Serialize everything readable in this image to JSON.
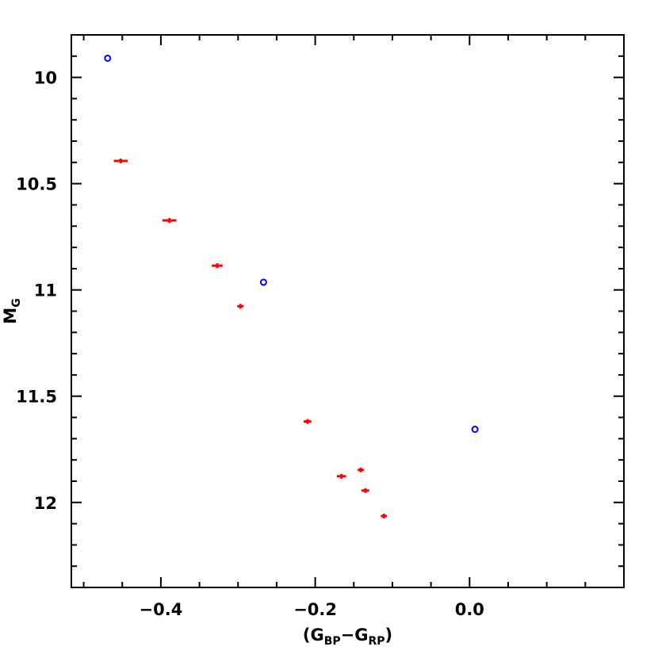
{
  "chart_data": {
    "type": "scatter",
    "xlabel": [
      {
        "text": "(G",
        "sub": false
      },
      {
        "text": "BP",
        "sub": true
      },
      {
        "text": "−G",
        "sub": false
      },
      {
        "text": "RP",
        "sub": true
      },
      {
        "text": ")",
        "sub": false
      }
    ],
    "ylabel": [
      {
        "text": "M",
        "sub": false
      },
      {
        "text": "G",
        "sub": true
      }
    ],
    "xlim": [
      -0.516,
      0.2
    ],
    "ylim": [
      9.8,
      12.4
    ],
    "y_inverted": true,
    "xticks": [
      {
        "value": -0.4,
        "label": "−0.4"
      },
      {
        "value": -0.2,
        "label": "−0.2"
      },
      {
        "value": 0,
        "label": "0.0"
      }
    ],
    "yticks": [
      10,
      10.5,
      11,
      11.5,
      12
    ],
    "xminor_ticks": [
      -0.5,
      -0.45,
      -0.35,
      -0.3,
      -0.25,
      -0.15,
      -0.1,
      -0.05,
      0.05,
      0.1,
      0.15
    ],
    "yminor_ticks": [
      9.9,
      10.1,
      10.2,
      10.3,
      10.4,
      10.6,
      10.7,
      10.8,
      10.9,
      11.1,
      11.2,
      11.3,
      11.4,
      11.6,
      11.7,
      11.8,
      11.9,
      12.1,
      12.2,
      12.3
    ],
    "series": [
      {
        "color": "#ff0000",
        "marker": "errorbar",
        "x": [
          -0.452,
          -0.389,
          -0.327,
          -0.297,
          -0.21,
          -0.166,
          -0.141,
          -0.135,
          -0.111
        ],
        "values": [
          10.393,
          10.673,
          10.886,
          11.077,
          11.619,
          11.877,
          11.847,
          11.944,
          12.064
        ],
        "x_errors": [
          0.009,
          0.009,
          0.007,
          0.004,
          0.005,
          0.006,
          0.004,
          0.005,
          0.004
        ]
      },
      {
        "color": "#0000ff",
        "marker": "circle",
        "x": [
          -0.469,
          -0.267,
          0.007
        ],
        "values": [
          9.91,
          10.964,
          11.656
        ]
      }
    ]
  }
}
